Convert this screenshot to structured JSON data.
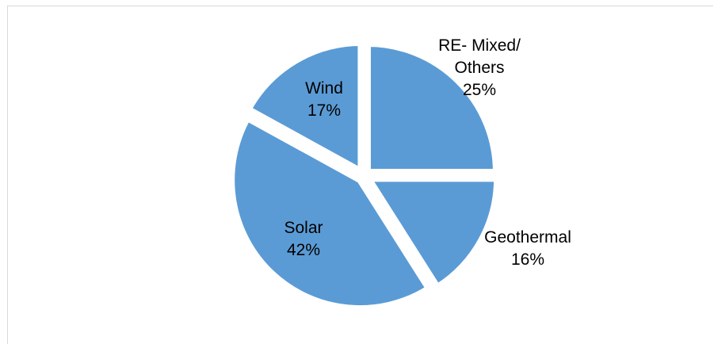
{
  "chart_data": {
    "type": "pie",
    "start_angle_deg": 0,
    "direction": "clockwise",
    "slice_color": "#5b9bd5",
    "gap_color": "#ffffff",
    "slices": [
      {
        "name": "RE- Mixed/ Others",
        "label_lines": [
          "RE- Mixed/",
          "Others"
        ],
        "value": 25,
        "value_label": "25%"
      },
      {
        "name": "Geothermal",
        "label_lines": [
          "Geothermal"
        ],
        "value": 16,
        "value_label": "16%"
      },
      {
        "name": "Solar",
        "label_lines": [
          "Solar"
        ],
        "value": 42,
        "value_label": "42%"
      },
      {
        "name": "Wind",
        "label_lines": [
          "Wind"
        ],
        "value": 17,
        "value_label": "17%"
      }
    ]
  }
}
